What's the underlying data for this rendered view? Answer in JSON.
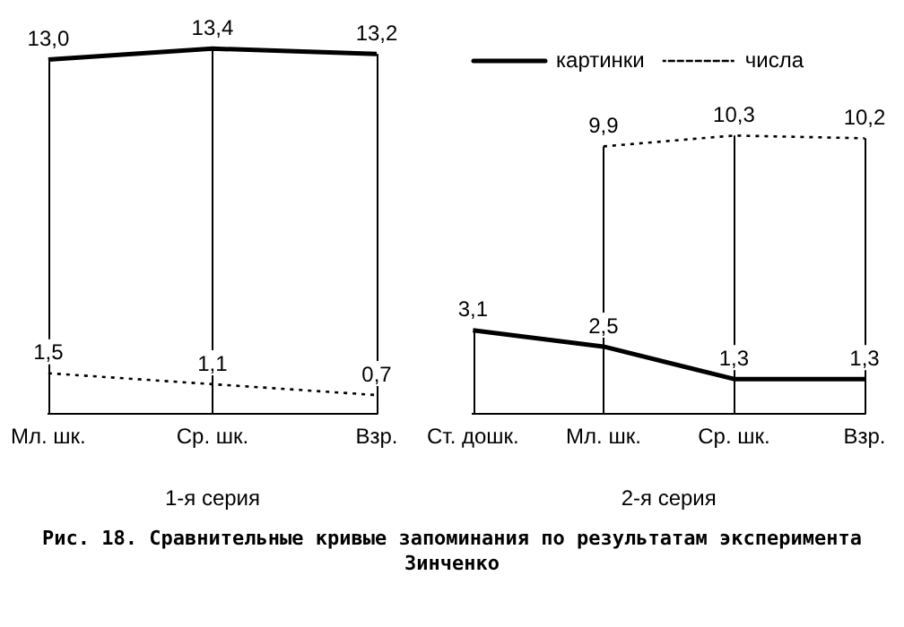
{
  "chart_data": [
    {
      "type": "line",
      "categories": [
        "Мл. шк.",
        "Ср. шк.",
        "Взр."
      ],
      "xlabel": "1-я серия",
      "grid": "x",
      "legend": false,
      "series": [
        {
          "color": "#000000",
          "line_style": "solid",
          "values": [
            13.0,
            13.4,
            13.2
          ],
          "value_labels": [
            "13,0",
            "13,4",
            "13,2"
          ]
        },
        {
          "color": "#000000",
          "line_style": "dotted",
          "values": [
            1.5,
            1.1,
            0.7
          ],
          "value_labels": [
            "1,5",
            "1,1",
            "0,7"
          ]
        }
      ]
    },
    {
      "type": "line",
      "categories": [
        "Ст. дошк.",
        "Мл. шк.",
        "Ср. шк.",
        "Взр."
      ],
      "xlabel": "2-я серия",
      "grid": "x",
      "legend": "top left",
      "annotations": [
        "Рис. 18. Сравнительные кривые запоминания по результатам эксперимента Зинченко"
      ],
      "series": [
        {
          "name": "картинки",
          "color": "#000000",
          "line_style": "solid",
          "values": [
            3.1,
            2.5,
            1.3,
            1.3
          ],
          "value_labels": [
            "3,1",
            "2,5",
            "1,3",
            "1,3"
          ]
        },
        {
          "name": "числа",
          "color": "#000000",
          "line_style": "dotted",
          "values": [
            null,
            9.9,
            10.3,
            10.2
          ],
          "value_labels": [
            null,
            "9,9",
            "10,3",
            "10,2"
          ]
        }
      ]
    }
  ]
}
